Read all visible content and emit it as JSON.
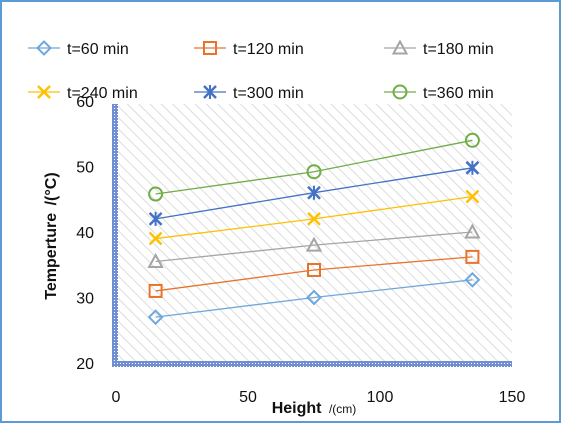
{
  "chart_data": {
    "type": "line",
    "xlabel": "Height",
    "xlabel_unit": "/(cm)",
    "ylabel": "Temperture",
    "ylabel_unit": "/(°C)",
    "xlim": [
      0,
      150
    ],
    "ylim": [
      20,
      60
    ],
    "x_ticks": [
      "0",
      "50",
      "100",
      "150"
    ],
    "y_ticks": [
      "20",
      "30",
      "40",
      "50",
      "60"
    ],
    "grid": false,
    "legend_position": "top",
    "x": [
      15,
      75,
      135
    ],
    "series": [
      {
        "name": "t=60 min",
        "values": [
          27.0,
          30.0,
          32.7
        ],
        "color": "#6fa8dc",
        "marker": "diamond"
      },
      {
        "name": "t=120 min",
        "values": [
          31.0,
          34.2,
          36.2
        ],
        "color": "#e8742c",
        "marker": "square"
      },
      {
        "name": "t=180 min",
        "values": [
          35.5,
          38.0,
          40.0
        ],
        "color": "#a5a5a5",
        "marker": "triangle"
      },
      {
        "name": "t=240 min",
        "values": [
          39.0,
          42.0,
          45.4
        ],
        "color": "#ffc000",
        "marker": "x"
      },
      {
        "name": "t=300 min",
        "values": [
          42.0,
          46.0,
          49.8
        ],
        "color": "#4472c4",
        "marker": "star"
      },
      {
        "name": "t=360 min",
        "values": [
          45.8,
          49.2,
          54.0
        ],
        "color": "#70ad47",
        "marker": "circle"
      }
    ],
    "colors": {
      "frame_border": "#5b9bd5",
      "axis_band": "#6f8fd2",
      "plot_hatch": "#d9d9d9"
    }
  }
}
